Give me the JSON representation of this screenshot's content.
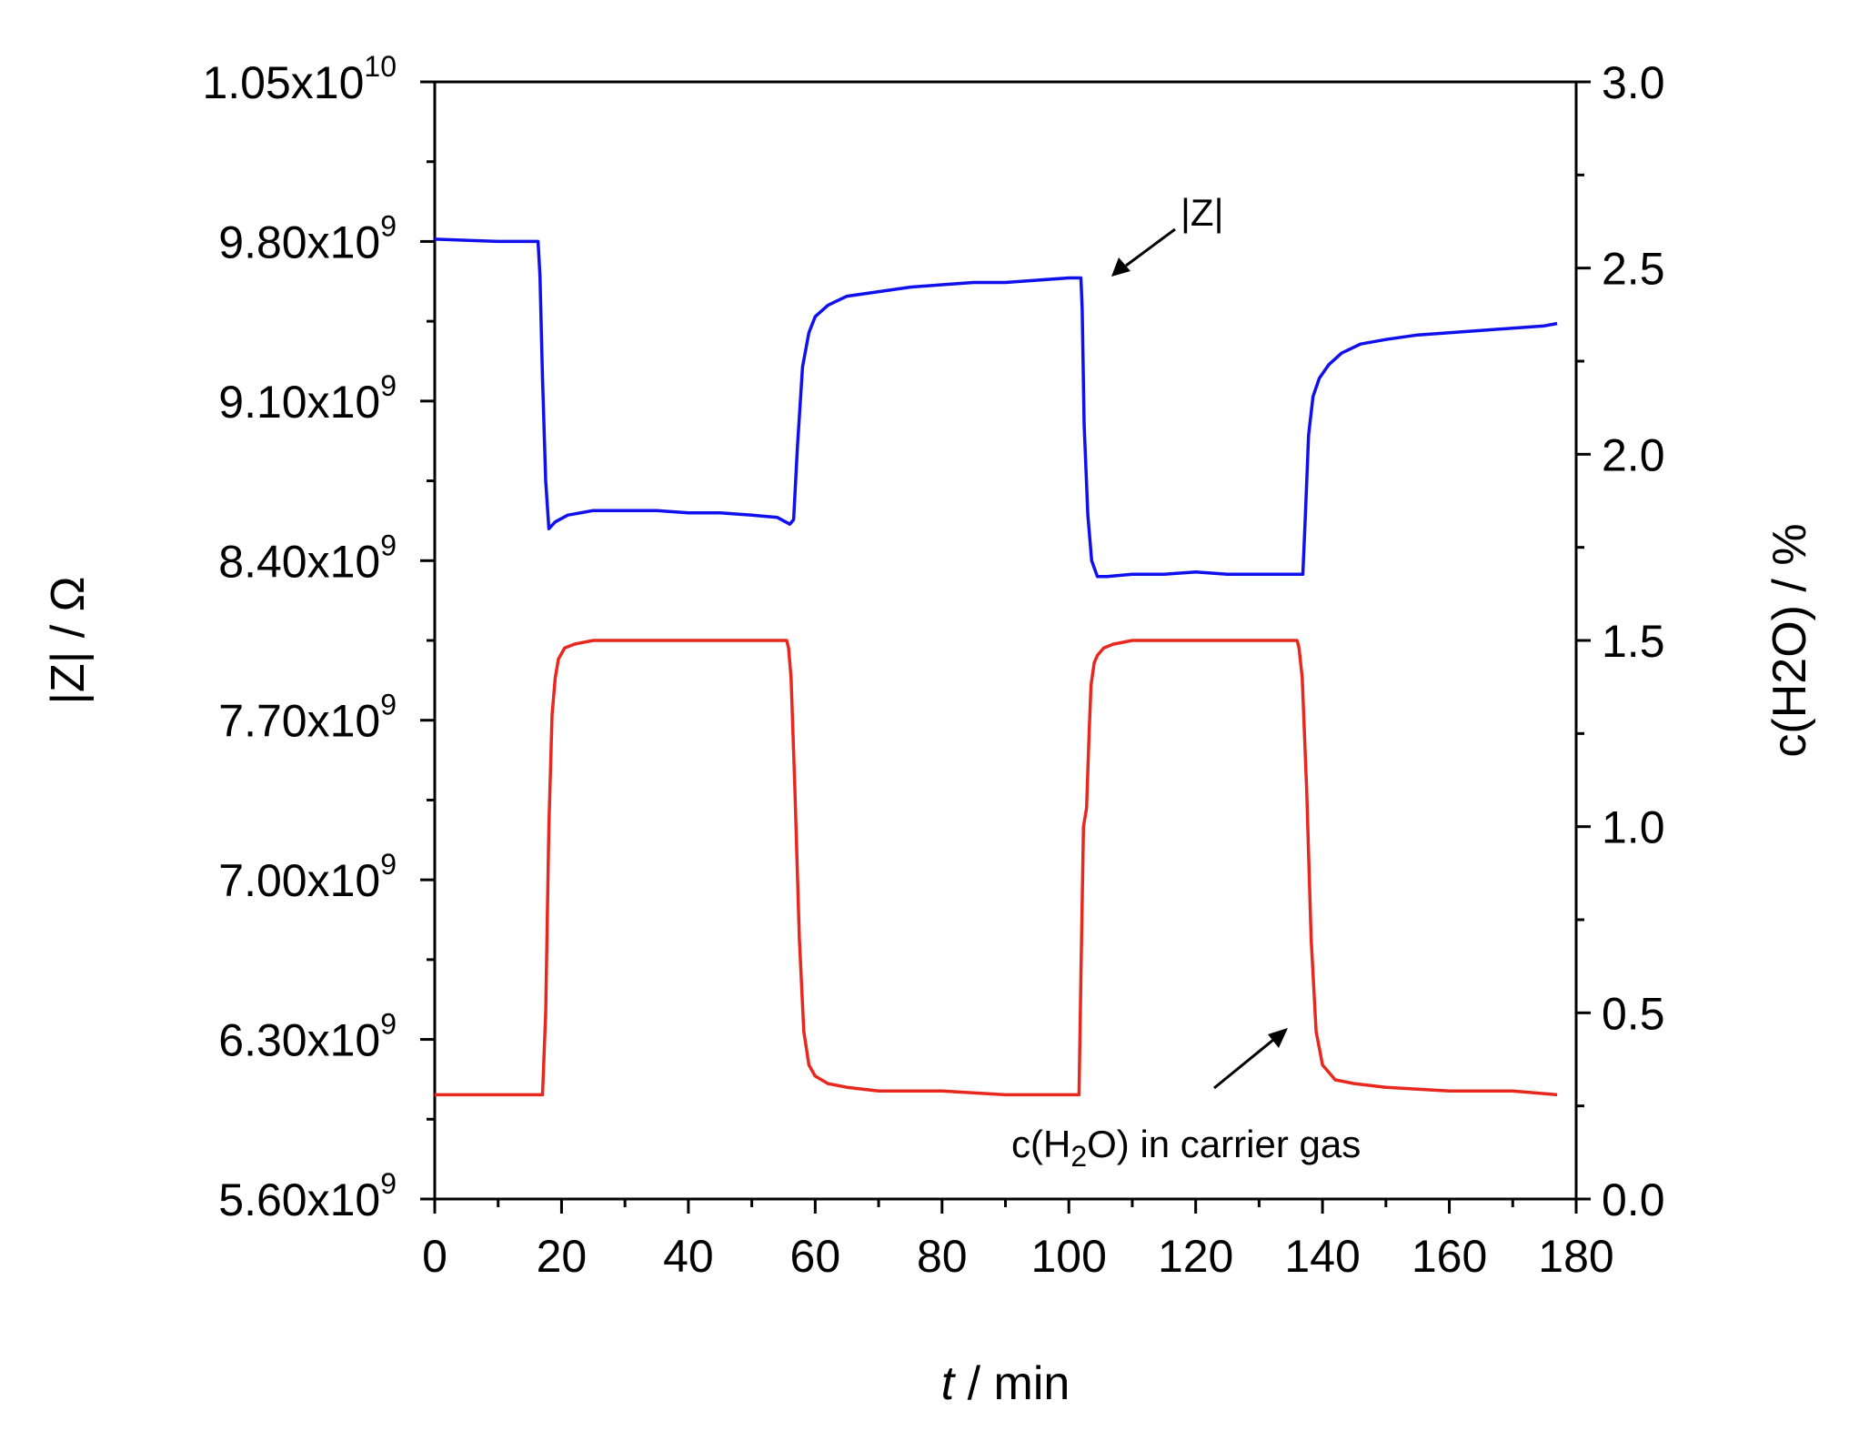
{
  "chart_data": {
    "type": "line",
    "xlabel": {
      "italic": "t",
      "rest": " / min"
    },
    "ylabel_left": {
      "label": "|Z| / Ω"
    },
    "ylabel_right": {
      "label": "c(H2O) / %"
    },
    "xlim": [
      0,
      180
    ],
    "ylim_left": [
      5600000000.0,
      10500000000.0
    ],
    "ylim_right": [
      0,
      3.0
    ],
    "x_ticks": [
      "0",
      "20",
      "40",
      "60",
      "80",
      "100",
      "120",
      "140",
      "160",
      "180"
    ],
    "left_ticks": [
      {
        "mantissa": "5.60x10",
        "exp": "9",
        "value": 5600000000.0
      },
      {
        "mantissa": "6.30x10",
        "exp": "9",
        "value": 6300000000.0
      },
      {
        "mantissa": "7.00x10",
        "exp": "9",
        "value": 7000000000.0
      },
      {
        "mantissa": "7.70x10",
        "exp": "9",
        "value": 7700000000.0
      },
      {
        "mantissa": "8.40x10",
        "exp": "9",
        "value": 8400000000.0
      },
      {
        "mantissa": "9.10x10",
        "exp": "9",
        "value": 9100000000.0
      },
      {
        "mantissa": "9.80x10",
        "exp": "9",
        "value": 9800000000.0
      },
      {
        "mantissa": "1.05x10",
        "exp": "10",
        "value": 10500000000.0
      }
    ],
    "right_ticks": [
      "0.0",
      "0.5",
      "1.0",
      "1.5",
      "2.0",
      "2.5",
      "3.0"
    ],
    "series": [
      {
        "name": "|Z|",
        "axis": "left",
        "color": "#1010ee",
        "x": [
          0,
          10,
          16.3,
          16.6,
          17.0,
          17.5,
          18.0,
          19,
          21,
          25,
          30,
          35,
          40,
          45,
          50,
          54,
          56,
          56.6,
          57.2,
          58,
          59,
          60,
          62,
          65,
          70,
          75,
          80,
          85,
          90,
          95,
          100,
          101.9,
          102.1,
          102.4,
          103,
          103.6,
          104.5,
          106,
          110,
          115,
          120,
          125,
          130,
          135,
          136.9,
          137.3,
          137.8,
          138.5,
          139.5,
          141,
          143,
          146,
          150,
          155,
          160,
          165,
          170,
          175,
          177
        ],
        "values": [
          9810000000.0,
          9800000000.0,
          9800000000.0,
          9650000000.0,
          9200000000.0,
          8750000000.0,
          8540000000.0,
          8570000000.0,
          8600000000.0,
          8620000000.0,
          8620000000.0,
          8620000000.0,
          8610000000.0,
          8610000000.0,
          8600000000.0,
          8590000000.0,
          8560000000.0,
          8580000000.0,
          8900000000.0,
          9250000000.0,
          9400000000.0,
          9470000000.0,
          9520000000.0,
          9560000000.0,
          9580000000.0,
          9600000000.0,
          9610000000.0,
          9620000000.0,
          9620000000.0,
          9630000000.0,
          9640000000.0,
          9640000000.0,
          9500000000.0,
          9000000000.0,
          8600000000.0,
          8400000000.0,
          8330000000.0,
          8330000000.0,
          8340000000.0,
          8340000000.0,
          8350000000.0,
          8340000000.0,
          8340000000.0,
          8340000000.0,
          8340000000.0,
          8600000000.0,
          8950000000.0,
          9120000000.0,
          9200000000.0,
          9260000000.0,
          9310000000.0,
          9350000000.0,
          9370000000.0,
          9390000000.0,
          9400000000.0,
          9410000000.0,
          9420000000.0,
          9430000000.0,
          9440000000.0
        ]
      },
      {
        "name": "c(H2O) in carrier gas",
        "axis": "right",
        "color": "#e8281e",
        "x": [
          0,
          10,
          17.0,
          17.5,
          18.0,
          18.5,
          19.0,
          19.5,
          20.5,
          22,
          25,
          30,
          40,
          50,
          55.5,
          55.8,
          56.2,
          56.8,
          57.5,
          58.2,
          59,
          60,
          62,
          65,
          70,
          80,
          90,
          100,
          101.6,
          101.9,
          102.3,
          102.8,
          103.2,
          103.5,
          104,
          104.5,
          105.5,
          107,
          110,
          120,
          130,
          136,
          136.3,
          136.8,
          137.5,
          138.2,
          139,
          140,
          142,
          145,
          150,
          160,
          170,
          177
        ],
        "values": [
          0.28,
          0.28,
          0.28,
          0.5,
          1.0,
          1.3,
          1.4,
          1.45,
          1.48,
          1.49,
          1.5,
          1.5,
          1.5,
          1.5,
          1.5,
          1.48,
          1.4,
          1.1,
          0.7,
          0.45,
          0.36,
          0.33,
          0.31,
          0.3,
          0.29,
          0.29,
          0.28,
          0.28,
          0.28,
          0.6,
          1.0,
          1.05,
          1.25,
          1.38,
          1.44,
          1.46,
          1.48,
          1.49,
          1.5,
          1.5,
          1.5,
          1.5,
          1.48,
          1.4,
          1.1,
          0.7,
          0.45,
          0.36,
          0.32,
          0.31,
          0.3,
          0.29,
          0.29,
          0.28
        ]
      }
    ],
    "annotations": [
      {
        "id": "z",
        "text": "|Z|"
      },
      {
        "id": "h2o",
        "before": "c(H",
        "sub": "2",
        "after": "O) in carrier gas"
      }
    ],
    "grid": false,
    "legend": "none"
  }
}
